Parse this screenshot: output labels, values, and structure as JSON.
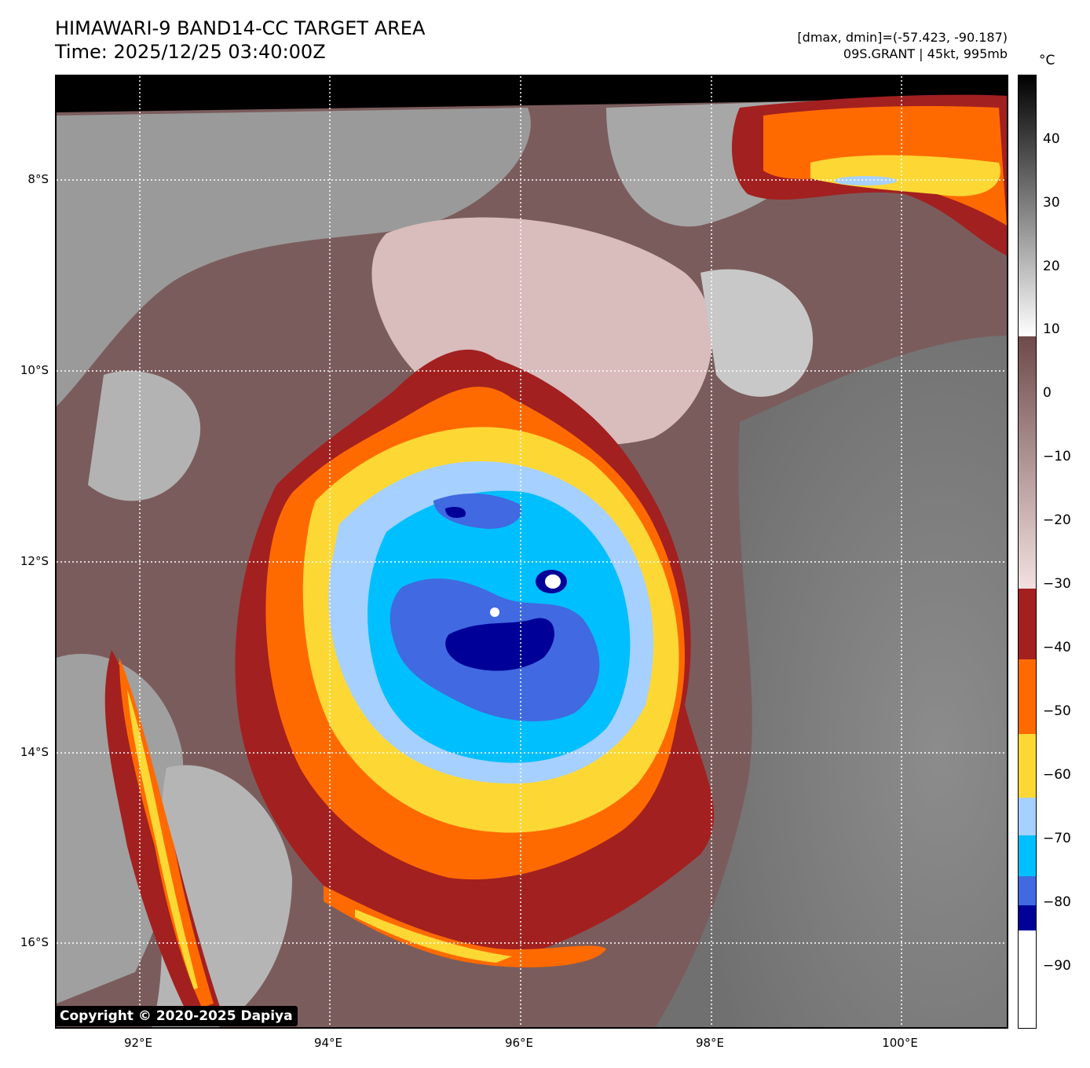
{
  "title": {
    "line1": "HIMAWARI-9 BAND14-CC TARGET AREA",
    "line2": "Time: 2025/12/25 03:40:00Z"
  },
  "meta": {
    "range": "[dmax, dmin]=(-57.423, -90.187)",
    "storm": "09S.GRANT | 45kt, 995mb"
  },
  "colorbar": {
    "unit": "°C",
    "ticks": [
      "40",
      "30",
      "20",
      "10",
      "0",
      "−10",
      "−20",
      "−30",
      "−40",
      "−50",
      "−60",
      "−70",
      "−80",
      "−90"
    ],
    "colors": {
      "black": "#000000",
      "gray": "#808080",
      "white": "#ffffff",
      "brown_light": "#f0d8d8",
      "brown_dark": "#6e4a4a",
      "darkred": "#a32020",
      "orange": "#ff6a00",
      "yellow": "#fdd835",
      "lightblue": "#a6d0ff",
      "cyan": "#00bfff",
      "royalblue": "#4169e1",
      "navy": "#000099"
    }
  },
  "axes": {
    "lat_labels": [
      "8°S",
      "10°S",
      "12°S",
      "14°S",
      "16°S"
    ],
    "lon_labels": [
      "92°E",
      "94°E",
      "96°E",
      "98°E",
      "100°E"
    ]
  },
  "copyright": "Copyright © 2020-2025 Dapiya"
}
